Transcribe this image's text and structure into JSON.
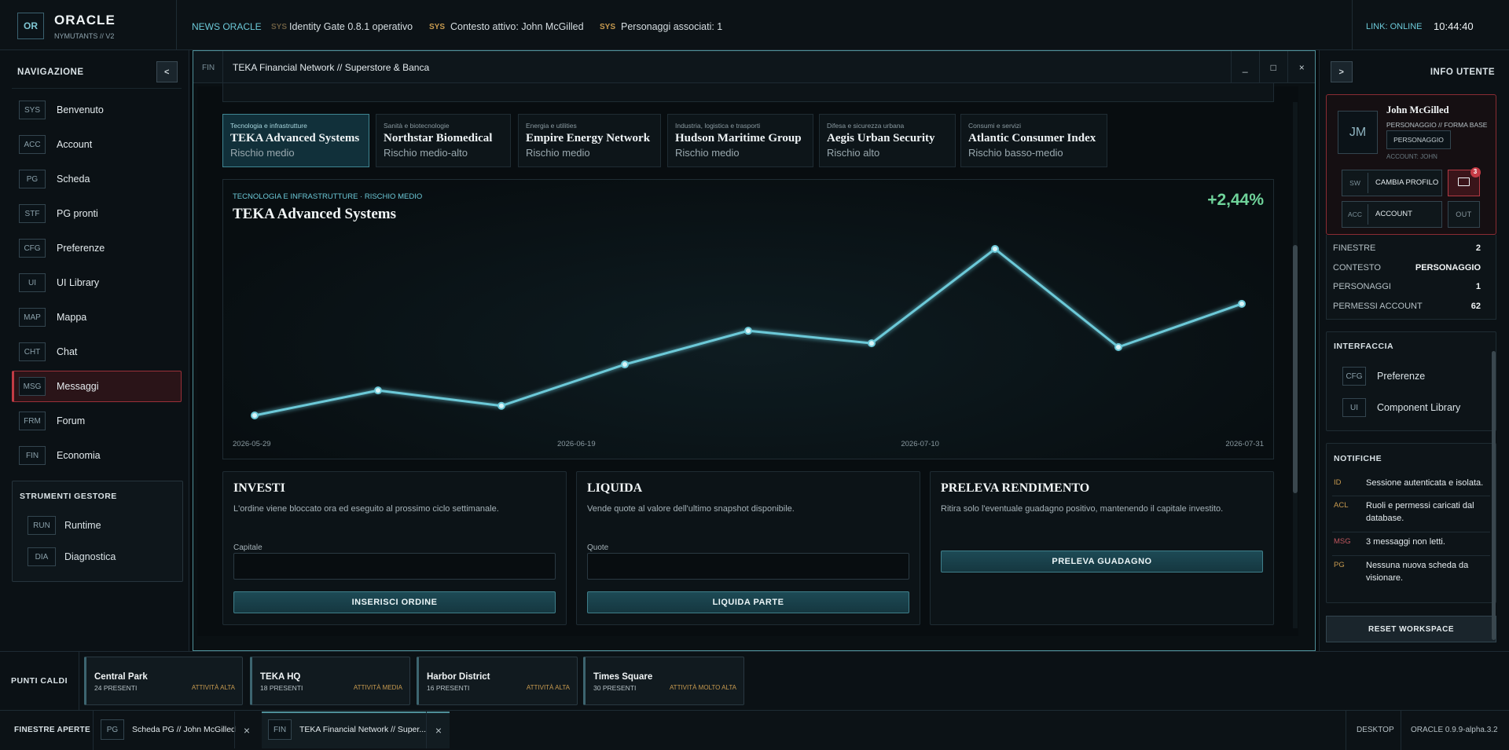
{
  "topbar": {
    "logo": "OR",
    "brand": "ORACLE",
    "subtitle": "NYMUTANTS // V2",
    "news_label": "NEWS ORACLE",
    "ticker": [
      {
        "tag": "SYS",
        "text": "Identity Gate 0.8.1 operativo"
      },
      {
        "tag": "SYS",
        "text": "Contesto attivo: John McGilled"
      },
      {
        "tag": "SYS",
        "text": "Personaggi associati: 1"
      }
    ],
    "link": "LINK: ONLINE",
    "time": "10:44:40"
  },
  "sidebar": {
    "title": "NAVIGAZIONE",
    "toggle": "<",
    "items": [
      {
        "code": "SYS",
        "label": "Benvenuto"
      },
      {
        "code": "ACC",
        "label": "Account"
      },
      {
        "code": "PG",
        "label": "Scheda"
      },
      {
        "code": "STF",
        "label": "PG pronti"
      },
      {
        "code": "CFG",
        "label": "Preferenze"
      },
      {
        "code": "UI",
        "label": "UI Library"
      },
      {
        "code": "MAP",
        "label": "Mappa"
      },
      {
        "code": "CHT",
        "label": "Chat"
      },
      {
        "code": "MSG",
        "label": "Messaggi"
      },
      {
        "code": "FRM",
        "label": "Forum"
      },
      {
        "code": "FIN",
        "label": "Economia"
      }
    ],
    "tools": {
      "title": "STRUMENTI GESTORE",
      "items": [
        {
          "code": "RUN",
          "label": "Runtime"
        },
        {
          "code": "DIA",
          "label": "Diagnostica"
        }
      ]
    }
  },
  "window": {
    "code": "FIN",
    "title": "TEKA Financial Network // Superstore & Banca",
    "controls": [
      "_",
      "□",
      "×"
    ],
    "tabs": [
      {
        "sector": "Tecnologia e infrastrutture",
        "name": "TEKA Advanced Systems",
        "risk": "Rischio medio"
      },
      {
        "sector": "Sanità e biotecnologie",
        "name": "Northstar Biomedical",
        "risk": "Rischio medio-alto"
      },
      {
        "sector": "Energia e utilities",
        "name": "Empire Energy Network",
        "risk": "Rischio medio"
      },
      {
        "sector": "Industria, logistica e trasporti",
        "name": "Hudson Maritime Group",
        "risk": "Rischio medio"
      },
      {
        "sector": "Difesa e sicurezza urbana",
        "name": "Aegis Urban Security",
        "risk": "Rischio alto"
      },
      {
        "sector": "Consumi e servizi",
        "name": "Atlantic Consumer Index",
        "risk": "Rischio basso-medio"
      }
    ],
    "chart": {
      "type": "line",
      "subtitle": "TECNOLOGIA E INFRASTRUTTURE · RISCHIO MEDIO",
      "title": "TEKA Advanced Systems",
      "change": "+2,44%",
      "xticks": [
        "2026-05-29",
        "2026-06-19",
        "2026-07-10",
        "2026-07-31"
      ],
      "values": [
        3.8,
        6.4,
        4.8,
        9.1,
        12.6,
        11.3,
        21.1,
        10.9,
        15.4
      ],
      "color": "#6cc9d8"
    },
    "panels": [
      {
        "title": "INVESTI",
        "description": "L'ordine viene bloccato ora ed eseguito al prossimo ciclo settimanale.",
        "field": "Capitale",
        "button": "INSERISCI ORDINE"
      },
      {
        "title": "LIQUIDA",
        "description": "Vende quote al valore dell'ultimo snapshot disponibile.",
        "field": "Quote",
        "button": "LIQUIDA PARTE"
      },
      {
        "title": "PRELEVA RENDIMENTO",
        "description": "Ritira solo l'eventuale guadagno positivo, mantenendo il capitale investito.",
        "button": "PRELEVA GUADAGNO"
      }
    ]
  },
  "user_panel": {
    "toggle": ">",
    "title": "INFO UTENTE",
    "avatar": "JM",
    "name": "John McGilled",
    "role": "PERSONAGGIO // FORMA BASE",
    "badge": "PERSONAGGIO",
    "account": "ACCOUNT: JOHN",
    "switch_code": "SW",
    "switch": "CAMBIA PROFILO",
    "mail_count": "3",
    "account_code": "ACC",
    "account_button": "ACCOUNT",
    "logout": "OUT",
    "stats": [
      {
        "label": "FINESTRE",
        "value": "2"
      },
      {
        "label": "CONTESTO",
        "value": "PERSONAGGIO"
      },
      {
        "label": "PERSONAGGI",
        "value": "1"
      },
      {
        "label": "PERMESSI ACCOUNT",
        "value": "62"
      }
    ],
    "interface": {
      "title": "INTERFACCIA",
      "items": [
        {
          "code": "CFG",
          "label": "Preferenze"
        },
        {
          "code": "UI",
          "label": "Component Library"
        }
      ]
    },
    "notifications": {
      "title": "NOTIFICHE",
      "items": [
        {
          "tag": "ID",
          "text": "Sessione autenticata e isolata."
        },
        {
          "tag": "ACL",
          "text": "Ruoli e permessi caricati dal database."
        },
        {
          "tag": "MSG",
          "text": "3 messaggi non letti."
        },
        {
          "tag": "PG",
          "text": "Nessuna nuova scheda da visionare."
        }
      ]
    },
    "reset": "RESET WORKSPACE"
  },
  "hotspots": {
    "title": "PUNTI CALDI",
    "items": [
      {
        "name": "Central Park",
        "present": "24 PRESENTI",
        "activity": "ATTIVITÀ ALTA"
      },
      {
        "name": "TEKA HQ",
        "present": "18 PRESENTI",
        "activity": "ATTIVITÀ MEDIA"
      },
      {
        "name": "Harbor District",
        "present": "16 PRESENTI",
        "activity": "ATTIVITÀ ALTA"
      },
      {
        "name": "Times Square",
        "present": "30 PRESENTI",
        "activity": "ATTIVITÀ MOLTO ALTA"
      }
    ]
  },
  "taskbar": {
    "title": "FINESTRE APERTE",
    "windows": [
      {
        "code": "PG",
        "title": "Scheda PG // John McGilled",
        "close": "×"
      },
      {
        "code": "FIN",
        "title": "TEKA Financial Network // Super...",
        "close": "×"
      }
    ],
    "desktop": "DESKTOP",
    "version": "ORACLE 0.9.9-alpha.3.2"
  }
}
